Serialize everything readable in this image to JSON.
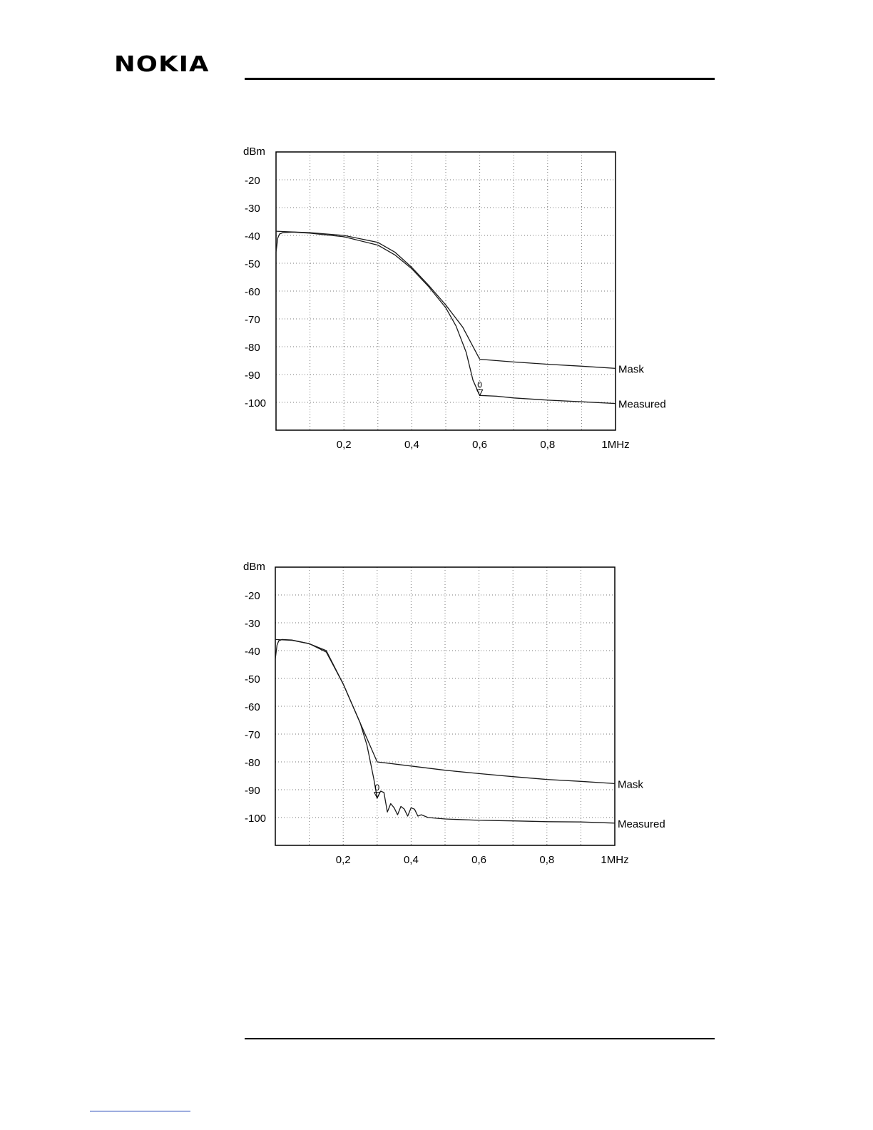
{
  "header": {
    "logo_text": "NOKIA"
  },
  "chart_data": [
    {
      "type": "line",
      "ylabel": "dBm",
      "xlabel": "",
      "xunit": "MHz",
      "xlim": [
        0,
        1.0
      ],
      "ylim": [
        -110,
        -10
      ],
      "grid": true,
      "x_ticks": [
        {
          "v": 0.1,
          "label": ""
        },
        {
          "v": 0.2,
          "label": "0,2"
        },
        {
          "v": 0.3,
          "label": ""
        },
        {
          "v": 0.4,
          "label": "0,4"
        },
        {
          "v": 0.5,
          "label": ""
        },
        {
          "v": 0.6,
          "label": "0,6"
        },
        {
          "v": 0.7,
          "label": ""
        },
        {
          "v": 0.8,
          "label": "0,8"
        },
        {
          "v": 0.9,
          "label": ""
        },
        {
          "v": 1.0,
          "label": "1MHz"
        }
      ],
      "y_ticks": [
        {
          "v": -20,
          "label": "-20"
        },
        {
          "v": -30,
          "label": "-30"
        },
        {
          "v": -40,
          "label": "-40"
        },
        {
          "v": -50,
          "label": "-50"
        },
        {
          "v": -60,
          "label": "-60"
        },
        {
          "v": -70,
          "label": "-70"
        },
        {
          "v": -80,
          "label": "-80"
        },
        {
          "v": -90,
          "label": "-90"
        },
        {
          "v": -100,
          "label": "-100"
        }
      ],
      "series": [
        {
          "name": "Mask",
          "x": [
            0.0,
            0.1,
            0.2,
            0.3,
            0.35,
            0.4,
            0.45,
            0.5,
            0.55,
            0.6,
            0.7,
            0.8,
            0.9,
            1.0
          ],
          "y": [
            -38.5,
            -39.0,
            -40.0,
            -42.5,
            -46.0,
            -51.5,
            -58.0,
            -65.0,
            -73.0,
            -84.5,
            -85.5,
            -86.3,
            -87.0,
            -87.8
          ]
        },
        {
          "name": "Measured",
          "x": [
            0.0,
            0.005,
            0.01,
            0.02,
            0.05,
            0.1,
            0.2,
            0.3,
            0.35,
            0.4,
            0.45,
            0.5,
            0.53,
            0.56,
            0.58,
            0.6,
            0.65,
            0.7,
            0.8,
            0.9,
            1.0
          ],
          "y": [
            -46.0,
            -41.0,
            -39.5,
            -39.0,
            -38.8,
            -39.2,
            -40.5,
            -43.5,
            -47.0,
            -52.0,
            -58.5,
            -66.0,
            -72.5,
            -82.0,
            -92.0,
            -97.5,
            -97.8,
            -98.4,
            -99.2,
            -99.8,
            -100.4
          ]
        }
      ],
      "marker": {
        "x": 0.6,
        "y": -96.5,
        "label": "0"
      }
    },
    {
      "type": "line",
      "ylabel": "dBm",
      "xlabel": "",
      "xunit": "MHz",
      "xlim": [
        0,
        1.0
      ],
      "ylim": [
        -110,
        -10
      ],
      "grid": true,
      "x_ticks": [
        {
          "v": 0.1,
          "label": ""
        },
        {
          "v": 0.2,
          "label": "0,2"
        },
        {
          "v": 0.3,
          "label": ""
        },
        {
          "v": 0.4,
          "label": "0,4"
        },
        {
          "v": 0.5,
          "label": ""
        },
        {
          "v": 0.6,
          "label": "0,6"
        },
        {
          "v": 0.7,
          "label": ""
        },
        {
          "v": 0.8,
          "label": "0,8"
        },
        {
          "v": 0.9,
          "label": ""
        },
        {
          "v": 1.0,
          "label": "1MHz"
        }
      ],
      "y_ticks": [
        {
          "v": -20,
          "label": "-20"
        },
        {
          "v": -30,
          "label": "-30"
        },
        {
          "v": -40,
          "label": "-40"
        },
        {
          "v": -50,
          "label": "-50"
        },
        {
          "v": -60,
          "label": "-60"
        },
        {
          "v": -70,
          "label": "-70"
        },
        {
          "v": -80,
          "label": "-80"
        },
        {
          "v": -90,
          "label": "-90"
        },
        {
          "v": -100,
          "label": "-100"
        }
      ],
      "series": [
        {
          "name": "Mask",
          "x": [
            0.0,
            0.05,
            0.1,
            0.15,
            0.2,
            0.25,
            0.3,
            0.4,
            0.5,
            0.6,
            0.7,
            0.8,
            0.9,
            1.0
          ],
          "y": [
            -36.0,
            -36.3,
            -37.5,
            -40.0,
            -52.0,
            -66.0,
            -80.0,
            -81.5,
            -83.0,
            -84.2,
            -85.3,
            -86.3,
            -87.0,
            -87.8
          ]
        },
        {
          "name": "Measured",
          "x": [
            0.0,
            0.005,
            0.01,
            0.02,
            0.05,
            0.1,
            0.15,
            0.2,
            0.25,
            0.27,
            0.28,
            0.29,
            0.3,
            0.31,
            0.32,
            0.33,
            0.34,
            0.35,
            0.36,
            0.37,
            0.38,
            0.39,
            0.4,
            0.41,
            0.42,
            0.43,
            0.45,
            0.5,
            0.6,
            0.7,
            0.8,
            0.9,
            1.0
          ],
          "y": [
            -43.0,
            -38.0,
            -36.5,
            -36.0,
            -36.2,
            -37.5,
            -40.5,
            -52.0,
            -66.0,
            -74.0,
            -80.0,
            -86.0,
            -93.0,
            -90.5,
            -91.0,
            -98.0,
            -95.0,
            -96.5,
            -99.0,
            -96.0,
            -97.0,
            -99.5,
            -96.5,
            -97.0,
            -99.5,
            -99.0,
            -100.0,
            -100.5,
            -101.0,
            -101.2,
            -101.5,
            -101.6,
            -102.0
          ]
        }
      ],
      "marker": {
        "x": 0.3,
        "y": -92.0,
        "label": "0"
      }
    }
  ]
}
